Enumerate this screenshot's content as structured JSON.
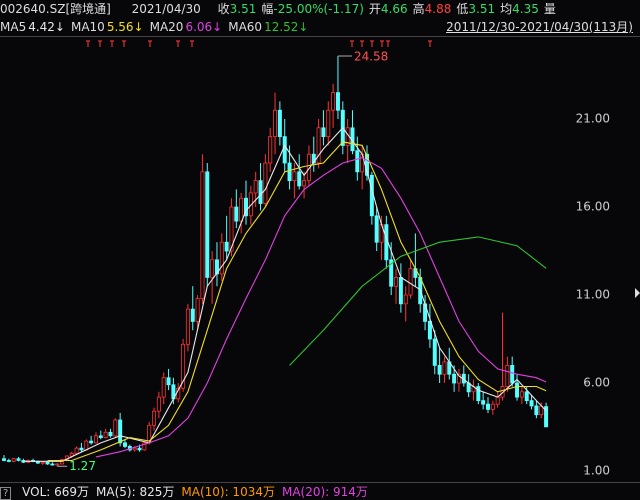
{
  "header": {
    "code": "002640.SZ[跨境通]",
    "date": "2021/04/30",
    "fields": [
      {
        "label": "收",
        "value": "3.51",
        "color": "#33dd66"
      },
      {
        "label": "幅",
        "value": "-25.00%(-1.17)",
        "color": "#33dd66"
      },
      {
        "label": "开",
        "value": "4.66",
        "color": "#33dd66"
      },
      {
        "label": "高",
        "value": "4.88",
        "color": "#ff4040"
      },
      {
        "label": "低",
        "value": "3.51",
        "color": "#33dd66"
      },
      {
        "label": "均",
        "value": "4.35",
        "color": "#33dd66"
      },
      {
        "label": "量",
        "value": "",
        "color": "#ddd"
      }
    ],
    "range": "2011/12/30-2021/04/30(113月)"
  },
  "ma_legend": [
    {
      "label": "MA5",
      "value": "4.42↓",
      "color": "#e8e8e8"
    },
    {
      "label": "MA10",
      "value": "5.56↓",
      "color": "#f0e020"
    },
    {
      "label": "MA20",
      "value": "6.06↓",
      "color": "#e040e0"
    },
    {
      "label": "MA60",
      "value": "12.52↓",
      "color": "#30c030"
    }
  ],
  "footer": [
    {
      "text": "VOL: 669万",
      "color": "#e8e8e8"
    },
    {
      "text": "MA(5): 825万",
      "color": "#e8e8e8"
    },
    {
      "text": "MA(10): 1034万",
      "color": "#ff9900"
    },
    {
      "text": "MA(20): 914万",
      "color": "#e040e0"
    }
  ],
  "chart_data": {
    "type": "candlestick",
    "ylim": [
      0.49,
      25.49
    ],
    "yticks": [
      {
        "value": 1,
        "label": "1.00"
      },
      {
        "value": 6,
        "label": "6.00"
      },
      {
        "value": 11,
        "label": "11.00"
      },
      {
        "value": 16,
        "label": "16.00"
      },
      {
        "value": 21,
        "label": "21.00"
      }
    ],
    "up_color": "#ff3232",
    "down_color": "#54ffff",
    "peak": 24.58,
    "trough": 1.27,
    "ohlc": [
      [
        1.7,
        1.9,
        1.55,
        1.6
      ],
      [
        1.6,
        1.7,
        1.5,
        1.55
      ],
      [
        1.55,
        1.75,
        1.5,
        1.7
      ],
      [
        1.7,
        1.8,
        1.55,
        1.6
      ],
      [
        1.6,
        1.7,
        1.45,
        1.5
      ],
      [
        1.5,
        1.65,
        1.45,
        1.6
      ],
      [
        1.6,
        1.7,
        1.5,
        1.55
      ],
      [
        1.55,
        1.6,
        1.4,
        1.45
      ],
      [
        1.45,
        1.55,
        1.35,
        1.5
      ],
      [
        1.5,
        1.55,
        1.35,
        1.4
      ],
      [
        1.4,
        1.5,
        1.3,
        1.35
      ],
      [
        1.35,
        1.45,
        1.27,
        1.4
      ],
      [
        1.4,
        1.7,
        1.38,
        1.65
      ],
      [
        1.65,
        1.9,
        1.6,
        1.85
      ],
      [
        1.85,
        2.1,
        1.75,
        2.0
      ],
      [
        2.0,
        2.4,
        1.95,
        2.3
      ],
      [
        2.3,
        2.6,
        2.1,
        2.2
      ],
      [
        2.2,
        2.8,
        2.15,
        2.7
      ],
      [
        2.7,
        3.0,
        2.5,
        2.6
      ],
      [
        2.6,
        3.2,
        2.55,
        3.0
      ],
      [
        3.0,
        3.3,
        2.8,
        2.9
      ],
      [
        2.9,
        3.4,
        2.85,
        3.2
      ],
      [
        3.2,
        3.4,
        2.9,
        3.0
      ],
      [
        3.0,
        4.0,
        2.9,
        3.9
      ],
      [
        3.9,
        4.3,
        2.4,
        2.6
      ],
      [
        2.6,
        2.8,
        2.3,
        2.4
      ],
      [
        2.4,
        2.5,
        2.1,
        2.2
      ],
      [
        2.2,
        2.4,
        2.1,
        2.3
      ],
      [
        2.3,
        2.5,
        2.1,
        2.2
      ],
      [
        2.2,
        2.7,
        2.15,
        2.6
      ],
      [
        2.6,
        3.8,
        2.5,
        3.6
      ],
      [
        3.6,
        4.6,
        3.3,
        4.4
      ],
      [
        4.4,
        5.5,
        4.0,
        5.2
      ],
      [
        5.2,
        6.6,
        4.8,
        6.3
      ],
      [
        6.3,
        6.8,
        5.6,
        5.9
      ],
      [
        5.9,
        6.3,
        4.8,
        5.1
      ],
      [
        5.1,
        6.0,
        4.9,
        5.7
      ],
      [
        5.7,
        8.5,
        5.5,
        8.2
      ],
      [
        8.2,
        10.5,
        7.8,
        10.2
      ],
      [
        10.2,
        11.5,
        9.0,
        9.5
      ],
      [
        9.5,
        11.0,
        9.0,
        10.8
      ],
      [
        10.8,
        19.0,
        10.5,
        18.0
      ],
      [
        18.0,
        18.5,
        11.5,
        12.0
      ],
      [
        12.0,
        13.5,
        10.5,
        13.0
      ],
      [
        13.0,
        14.0,
        11.5,
        12.2
      ],
      [
        12.2,
        14.5,
        11.8,
        14.0
      ],
      [
        14.0,
        15.5,
        13.0,
        13.5
      ],
      [
        13.5,
        16.5,
        13.2,
        16.0
      ],
      [
        16.0,
        17.0,
        14.8,
        15.2
      ],
      [
        15.2,
        16.8,
        14.5,
        16.5
      ],
      [
        16.5,
        17.5,
        15.0,
        15.5
      ],
      [
        15.5,
        17.2,
        15.0,
        16.8
      ],
      [
        16.8,
        18.0,
        16.0,
        17.5
      ],
      [
        17.5,
        18.5,
        15.8,
        16.2
      ],
      [
        16.2,
        19.0,
        16.0,
        18.5
      ],
      [
        18.5,
        20.5,
        18.0,
        20.0
      ],
      [
        20.0,
        22.5,
        19.0,
        21.5
      ],
      [
        21.5,
        22.0,
        19.5,
        20.0
      ],
      [
        20.0,
        21.0,
        18.0,
        18.5
      ],
      [
        18.5,
        19.5,
        17.0,
        17.5
      ],
      [
        17.5,
        18.5,
        16.5,
        18.0
      ],
      [
        18.0,
        19.0,
        17.0,
        17.2
      ],
      [
        17.2,
        18.0,
        16.5,
        17.5
      ],
      [
        17.5,
        19.5,
        17.2,
        19.0
      ],
      [
        19.0,
        20.0,
        18.0,
        18.5
      ],
      [
        18.5,
        21.0,
        18.2,
        20.5
      ],
      [
        20.5,
        21.5,
        19.5,
        20.0
      ],
      [
        20.0,
        22.0,
        19.5,
        21.5
      ],
      [
        21.5,
        23.0,
        20.5,
        22.5
      ],
      [
        22.5,
        24.58,
        21.0,
        21.5
      ],
      [
        21.5,
        22.0,
        19.0,
        19.5
      ],
      [
        19.5,
        21.0,
        18.5,
        20.5
      ],
      [
        20.5,
        21.5,
        19.0,
        19.2
      ],
      [
        19.2,
        20.0,
        17.5,
        18.0
      ],
      [
        18.0,
        19.5,
        17.0,
        19.0
      ],
      [
        19.0,
        19.5,
        17.5,
        17.8
      ],
      [
        17.8,
        18.0,
        15.0,
        15.5
      ],
      [
        15.5,
        16.0,
        13.5,
        14.0
      ],
      [
        14.0,
        15.5,
        13.0,
        15.0
      ],
      [
        15.0,
        15.5,
        12.5,
        13.0
      ],
      [
        13.0,
        14.0,
        11.0,
        11.5
      ],
      [
        11.5,
        12.5,
        10.5,
        12.0
      ],
      [
        12.0,
        12.8,
        10.0,
        10.5
      ],
      [
        10.5,
        11.5,
        9.5,
        11.0
      ],
      [
        11.0,
        13.0,
        10.8,
        12.5
      ],
      [
        12.5,
        14.5,
        11.5,
        12.0
      ],
      [
        12.0,
        12.5,
        10.0,
        10.5
      ],
      [
        10.5,
        11.0,
        9.0,
        9.5
      ],
      [
        9.5,
        10.5,
        8.0,
        8.5
      ],
      [
        8.5,
        9.0,
        6.5,
        7.0
      ],
      [
        7.0,
        8.0,
        6.0,
        6.5
      ],
      [
        6.5,
        7.5,
        6.0,
        7.2
      ],
      [
        7.2,
        8.0,
        6.2,
        6.5
      ],
      [
        6.5,
        7.0,
        5.5,
        6.0
      ],
      [
        6.0,
        6.8,
        5.5,
        6.5
      ],
      [
        6.5,
        7.0,
        5.8,
        6.0
      ],
      [
        6.0,
        6.5,
        5.2,
        5.5
      ],
      [
        5.5,
        6.2,
        5.0,
        5.8
      ],
      [
        5.8,
        6.0,
        4.8,
        5.0
      ],
      [
        5.0,
        5.5,
        4.5,
        4.8
      ],
      [
        4.8,
        5.2,
        4.3,
        4.5
      ],
      [
        4.5,
        5.0,
        4.2,
        4.8
      ],
      [
        4.8,
        5.5,
        4.6,
        5.2
      ],
      [
        5.2,
        10.0,
        5.0,
        5.8
      ],
      [
        5.8,
        7.5,
        5.5,
        7.0
      ],
      [
        7.0,
        7.5,
        5.8,
        6.0
      ],
      [
        6.0,
        6.5,
        5.0,
        5.2
      ],
      [
        5.2,
        5.8,
        4.8,
        5.5
      ],
      [
        5.5,
        5.8,
        4.8,
        5.0
      ],
      [
        5.0,
        5.3,
        4.5,
        4.7
      ],
      [
        4.7,
        5.0,
        4.0,
        4.2
      ],
      [
        4.2,
        4.9,
        4.0,
        4.68
      ],
      [
        4.66,
        4.88,
        3.51,
        3.51
      ]
    ],
    "series": [
      {
        "name": "MA5",
        "color": "#e8e8e8",
        "x": [
          4,
          12,
          20,
          24,
          30,
          34,
          38,
          42,
          46,
          50,
          54,
          58,
          62,
          66,
          70,
          74,
          78,
          82,
          86,
          90,
          94,
          98,
          102,
          106,
          110,
          112
        ],
        "values": [
          1.55,
          1.55,
          2.6,
          3.0,
          2.6,
          4.6,
          6.6,
          11.5,
          13.0,
          15.8,
          17.0,
          19.5,
          17.8,
          19.3,
          20.5,
          19.0,
          15.0,
          12.0,
          11.3,
          8.0,
          6.4,
          5.6,
          5.2,
          6.2,
          5.0,
          4.42
        ]
      },
      {
        "name": "MA10",
        "color": "#f0e020",
        "x": [
          9,
          14,
          20,
          26,
          30,
          34,
          38,
          42,
          46,
          50,
          54,
          58,
          62,
          66,
          70,
          74,
          78,
          82,
          86,
          90,
          94,
          98,
          102,
          106,
          110,
          112
        ],
        "values": [
          1.6,
          1.6,
          2.2,
          2.9,
          2.7,
          3.6,
          5.5,
          9.0,
          12.5,
          14.5,
          16.0,
          18.0,
          18.3,
          18.5,
          19.7,
          19.5,
          17.0,
          14.0,
          12.0,
          9.5,
          7.5,
          6.2,
          5.5,
          5.8,
          5.8,
          5.56
        ]
      },
      {
        "name": "MA20",
        "color": "#e040e0",
        "x": [
          19,
          24,
          30,
          34,
          38,
          42,
          46,
          50,
          54,
          58,
          62,
          66,
          70,
          74,
          78,
          82,
          86,
          90,
          94,
          98,
          102,
          106,
          110,
          112
        ],
        "values": [
          1.8,
          2.1,
          2.6,
          3.0,
          4.0,
          6.0,
          8.5,
          10.8,
          13.0,
          15.5,
          17.0,
          17.8,
          18.5,
          18.8,
          18.2,
          16.5,
          14.5,
          12.0,
          9.5,
          7.8,
          6.8,
          6.5,
          6.3,
          6.06
        ]
      },
      {
        "name": "MA60",
        "color": "#30c030",
        "x": [
          59,
          66,
          74,
          82,
          90,
          98,
          106,
          112
        ],
        "values": [
          7.0,
          9.0,
          11.5,
          13.2,
          14.0,
          14.3,
          13.8,
          12.52
        ]
      }
    ]
  }
}
